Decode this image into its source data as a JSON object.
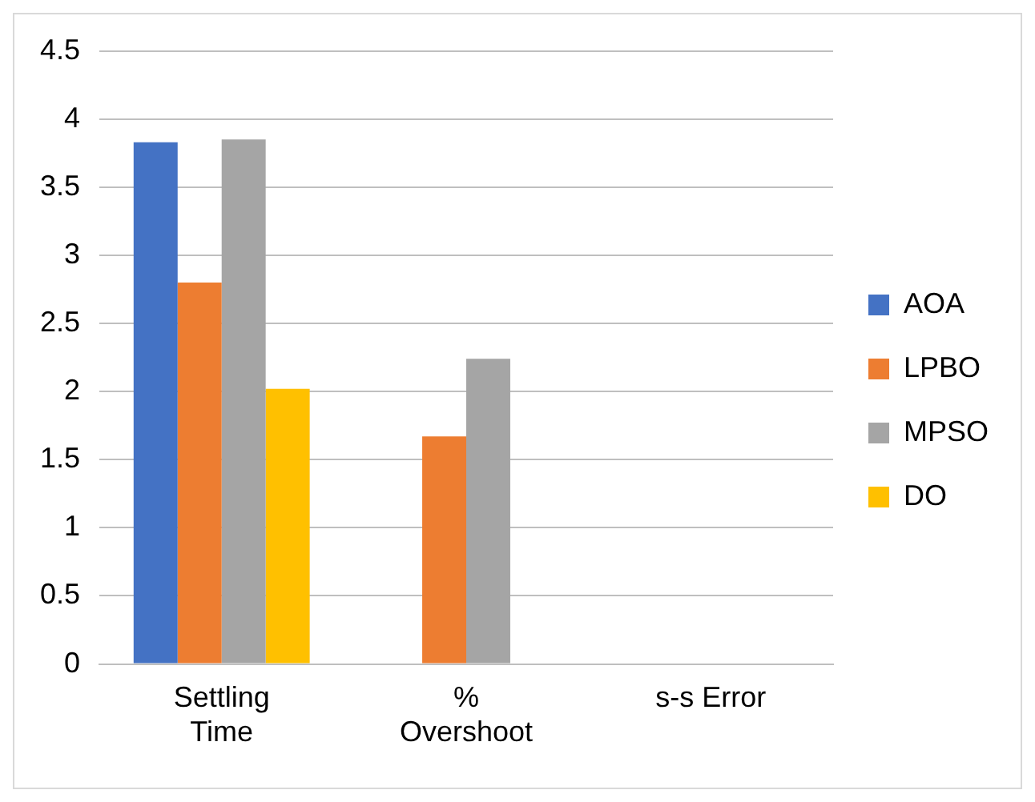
{
  "chart_data": {
    "type": "bar",
    "categories": [
      "Settling Time",
      "% Overshoot",
      "s-s Error"
    ],
    "series": [
      {
        "name": "AOA",
        "color": "#4472c4",
        "values": [
          3.83,
          0,
          0
        ]
      },
      {
        "name": "LPBO",
        "color": "#ed7d31",
        "values": [
          2.8,
          1.67,
          0
        ]
      },
      {
        "name": "MPSO",
        "color": "#a5a5a5",
        "values": [
          3.85,
          2.24,
          0
        ]
      },
      {
        "name": "DO",
        "color": "#ffc000",
        "values": [
          2.02,
          0,
          0
        ]
      }
    ],
    "ylim": [
      0,
      4.5
    ],
    "yticks": [
      0,
      0.5,
      1,
      1.5,
      2,
      2.5,
      3,
      3.5,
      4,
      4.5
    ],
    "grid": "y",
    "legend": "right"
  }
}
